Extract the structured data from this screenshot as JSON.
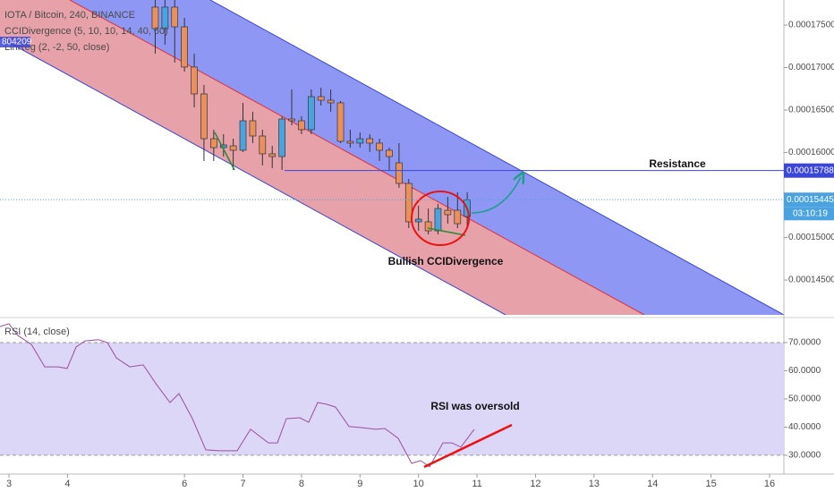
{
  "header": {
    "symbol": "IOTA / Bitcoin, 240, BINANCE",
    "indicators": [
      "CCIDivergence (5, 10, 10, 14, 40, 60)",
      "LinReg (2, -2, 50, close)"
    ],
    "badge": "804209"
  },
  "chart_data": [
    {
      "type": "candlestick",
      "up_color": "#4aa3df",
      "down_color": "#e9915c",
      "x": [
        5.5,
        5.667,
        5.833,
        6,
        6.167,
        6.333,
        6.5,
        6.667,
        6.833,
        7,
        7.167,
        7.333,
        7.5,
        7.667,
        7.833,
        8,
        8.167,
        8.333,
        8.5,
        8.667,
        8.833,
        9,
        9.167,
        9.333,
        9.5,
        9.667,
        9.833,
        10,
        10.167,
        10.333,
        10.5,
        10.667,
        10.833
      ],
      "open": [
        0.00017711,
        0.00017458,
        0.00017711,
        0.00017479,
        0.00017006,
        0.0001669,
        0.00016163,
        0.00016058,
        0.00016079,
        0.00016027,
        0.00016374,
        0.00016195,
        0.00015985,
        0.00015953,
        0.00016395,
        0.00016374,
        0.00016269,
        0.00016658,
        0.00016616,
        0.00016585,
        0.00016132,
        0.00016111,
        0.00016163,
        0.00016111,
        0.00016027,
        0.00015879,
        0.00015637,
        0.00015185,
        0.00015185,
        0.00015079,
        0.00015321,
        0.00015321,
        0.00015248
      ],
      "high": [
        0.00017795,
        0.00017795,
        0.00017795,
        0.00017584,
        0.00017163,
        0.00016795,
        0.00016269,
        0.00016216,
        0.00016163,
        0.00016585,
        0.00016479,
        0.00016269,
        0.00016079,
        0.00016427,
        0.00016742,
        0.00016427,
        0.00016742,
        0.00016763,
        0.00016742,
        0.00016606,
        0.00016269,
        0.00016237,
        0.00016216,
        0.00016163,
        0.00016058,
        0.00016111,
        0.0001569,
        0.00015374,
        0.00015342,
        0.00015395,
        0.00015479,
        0.00015532,
        0.00015532
      ],
      "low": [
        0.00017163,
        0.00017269,
        0.00017058,
        0.00016953,
        0.00016532,
        0.000159,
        0.000159,
        0.00015953,
        0.00015795,
        0.00016006,
        0.00016111,
        0.00015848,
        0.00015816,
        0.00015795,
        0.00016321,
        0.00016216,
        0.00016216,
        0.00016553,
        0.00016479,
        0.00016111,
        0.00016058,
        0.00016058,
        0.00016006,
        0.000159,
        0.00015795,
        0.00015585,
        0.00015111,
        0.00015079,
        0.00015037,
        0.00015037,
        0.00015163,
        0.00015111,
        0.00015111
      ],
      "close": [
        0.00017458,
        0.00017711,
        0.00017479,
        0.00017006,
        0.0001669,
        0.00016163,
        0.00016058,
        0.0001609,
        0.00016027,
        0.00016374,
        0.00016195,
        0.00015985,
        0.00015953,
        0.00016395,
        0.00016374,
        0.00016269,
        0.00016658,
        0.00016616,
        0.00016585,
        0.00016132,
        0.00016111,
        0.00016163,
        0.00016111,
        0.00016027,
        0.00015953,
        0.00015637,
        0.00015185,
        0.00015216,
        0.00015079,
        0.00015342,
        0.00015269,
        0.00015163,
        0.00015445
      ],
      "xlim": [
        2.847,
        16.245
      ],
      "ylim": [
        0.0001409,
        0.00017795
      ],
      "yticks": [
        {
          "value": 0.000175,
          "label": "0.00017500"
        },
        {
          "value": 0.00017,
          "label": "0.00017000"
        },
        {
          "value": 0.000165,
          "label": "0.00016500"
        },
        {
          "value": 0.00016,
          "label": "0.00016000"
        },
        {
          "value": 0.00015,
          "label": "0.00015000"
        },
        {
          "value": 0.000145,
          "label": "0.00014500"
        }
      ],
      "resistance": {
        "label": "Resistance",
        "value": 0.00015788,
        "color": "#3b45d8"
      },
      "last_price": {
        "value": 0.00015445,
        "countdown": "03:10:19",
        "color": "#4aa3df"
      },
      "annotation": "Bullish CCIDivergence"
    },
    {
      "type": "line",
      "title": "RSI (14, close)",
      "color": "#9b4f9e",
      "x": [
        2.847,
        3,
        3.153,
        3.382,
        3.612,
        3.841,
        3.994,
        4.147,
        4.3,
        4.53,
        4.682,
        4.835,
        5.065,
        5.294,
        5.524,
        5.753,
        5.906,
        6.136,
        6.365,
        6.594,
        6.9,
        7.13,
        7.436,
        7.589,
        7.741,
        7.971,
        8.124,
        8.277,
        8.43,
        8.583,
        8.812,
        9.042,
        9.271,
        9.424,
        9.653,
        9.883,
        10.036,
        10.189,
        10.418,
        10.571,
        10.724,
        10.953
      ],
      "values": [
        75.7,
        76.7,
        72.5,
        69.4,
        61.4,
        61.4,
        60.8,
        68.4,
        70.6,
        71.0,
        70.0,
        64.6,
        61.4,
        62.1,
        55.1,
        48.7,
        51.9,
        43.0,
        31.9,
        31.6,
        31.6,
        39.2,
        34.4,
        34.4,
        43.0,
        43.3,
        41.7,
        48.7,
        48.1,
        47.1,
        40.2,
        39.8,
        39.2,
        39.5,
        36.0,
        27.1,
        28.1,
        25.9,
        34.4,
        34.4,
        32.9,
        39.2
      ],
      "levels": [
        70,
        30
      ],
      "xlim": [
        2.847,
        16.245
      ],
      "ylim": [
        23.3,
        77.3
      ],
      "yticks": [
        {
          "value": 70,
          "label": "70.0000"
        },
        {
          "value": 60,
          "label": "60.0000"
        },
        {
          "value": 50,
          "label": "50.0000"
        },
        {
          "value": 40,
          "label": "40.0000"
        },
        {
          "value": 30,
          "label": "30.0000"
        }
      ],
      "xticks": [
        3,
        4,
        6,
        7,
        8,
        9,
        10,
        11,
        12,
        13,
        14,
        15,
        16
      ],
      "annotation": "RSI was oversold"
    }
  ]
}
